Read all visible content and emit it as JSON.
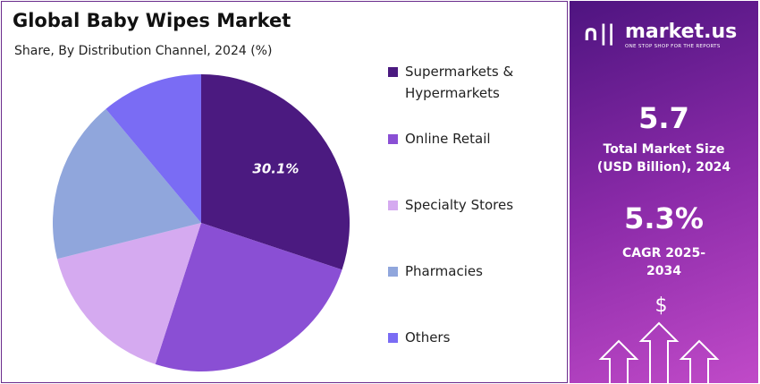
{
  "chart_data": {
    "type": "pie",
    "title": "Global Baby Wipes Market",
    "subtitle": "Share, By Distribution Channel, 2024 (%)",
    "categories": [
      "Supermarkets & Hypermarkets",
      "Online Retail",
      "Specialty Stores",
      "Pharmacies",
      "Others"
    ],
    "values": [
      30.1,
      24.9,
      16.1,
      17.8,
      11.1
    ],
    "value_labels": [
      "30.1%",
      null,
      null,
      null,
      null
    ],
    "colors": [
      "#4b1a80",
      "#8a4fd4",
      "#d5aaf0",
      "#90a6dc",
      "#7a6cf4"
    ],
    "legend": "right"
  },
  "panel": {
    "logo": "market.us",
    "tagline": "ONE STOP SHOP FOR THE REPORTS",
    "market_size": "5.7",
    "market_size_label": "Total Market Size (USD Billion), 2024",
    "cagr": "5.3%",
    "cagr_label": "CAGR 2025-2034",
    "icon": "$"
  }
}
